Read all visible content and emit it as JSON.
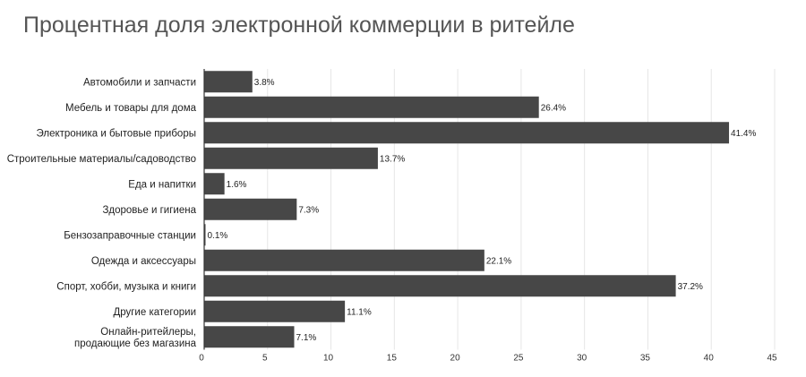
{
  "chart_data": {
    "type": "bar",
    "orientation": "horizontal",
    "title": "Процентная доля электронной коммерции в ритейле",
    "categories": [
      "Автомобили и запчасти",
      "Мебель и товары для дома",
      "Электроника и бытовые приборы",
      "Строительные материалы/садоводство",
      "Еда и напитки",
      "Здоровье и гигиена",
      "Бензозаправочные станции",
      "Одежда и аксессуары",
      "Спорт, хобби, музыка и книги",
      "Другие категории",
      "Онлайн-ритейлеры, продающие без магазина"
    ],
    "category_lines": [
      [
        "Автомобили и запчасти"
      ],
      [
        "Мебель и товары для дома"
      ],
      [
        "Электроника и бытовые приборы"
      ],
      [
        "Строительные материалы/садоводство"
      ],
      [
        "Еда и напитки"
      ],
      [
        "Здоровье и гигиена"
      ],
      [
        "Бензозаправочные станции"
      ],
      [
        "Одежда и аксессуары"
      ],
      [
        "Спорт, хобби, музыка и книги"
      ],
      [
        "Другие категории"
      ],
      [
        "Онлайн-ритейлеры,",
        "продающие без магазина"
      ]
    ],
    "values": [
      3.8,
      26.4,
      41.4,
      13.7,
      1.6,
      7.3,
      0.1,
      22.1,
      37.2,
      11.1,
      7.1
    ],
    "value_labels": [
      "3.8%",
      "26.4%",
      "41.4%",
      "13.7%",
      "1.6%",
      "7.3%",
      "0.1%",
      "22.1%",
      "37.2%",
      "11.1%",
      "7.1%"
    ],
    "x_ticks": [
      0,
      5,
      10,
      15,
      20,
      25,
      30,
      35,
      40,
      45
    ],
    "xlim": [
      0,
      45
    ],
    "grid": true,
    "bar_color": "#474747",
    "xlabel": "",
    "ylabel": ""
  }
}
